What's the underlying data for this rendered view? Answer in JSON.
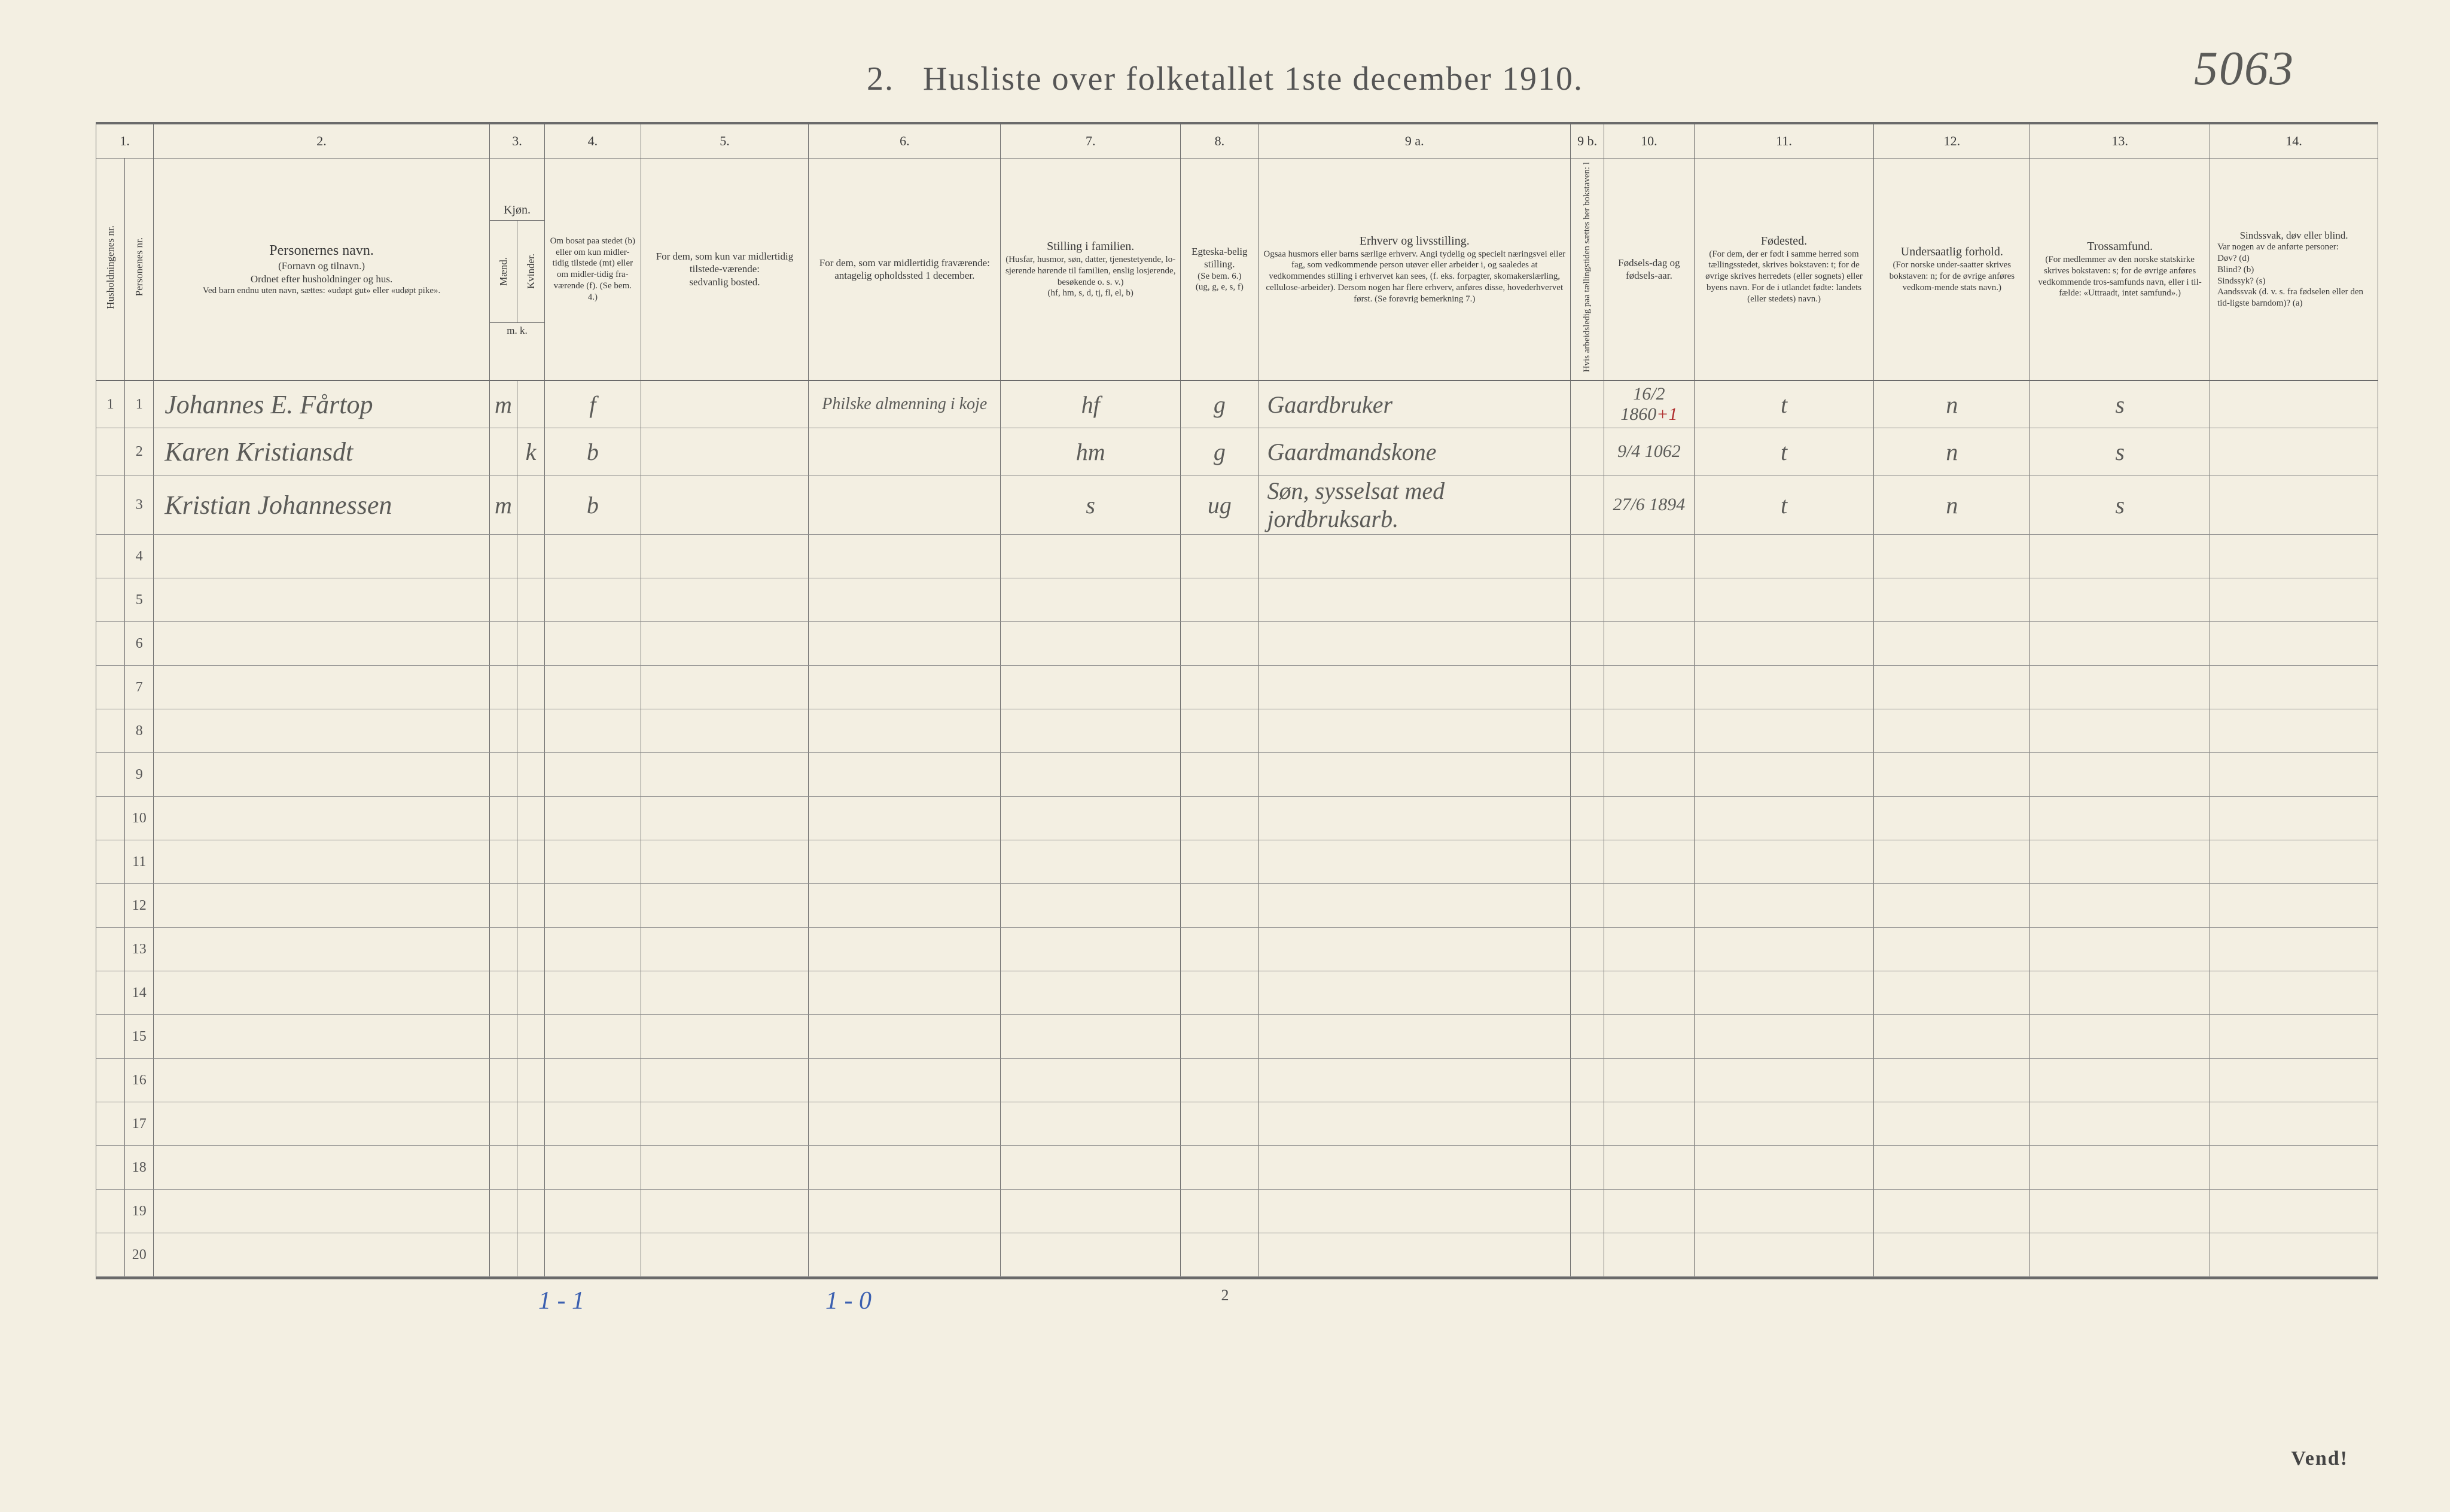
{
  "title_prefix": "2.",
  "title": "Husliste over folketallet 1ste december 1910.",
  "top_annotation": "5063",
  "page_number": "2",
  "vend": "Vend!",
  "foot_annot_1": "1 - 1",
  "foot_annot_2": "1 - 0",
  "columns": {
    "num": [
      "1.",
      "2.",
      "3.",
      "4.",
      "5.",
      "6.",
      "7.",
      "8.",
      "9 a.",
      "9 b.",
      "10.",
      "11.",
      "12.",
      "13.",
      "14."
    ],
    "h1a": "Husholdningenes nr.",
    "h1b": "Personenes nr.",
    "h2_title": "Personernes navn.",
    "h2_sub1": "(Fornavn og tilnavn.)",
    "h2_sub2": "Ordnet efter husholdninger og hus.",
    "h2_sub3": "Ved barn endnu uten navn, sættes: «udøpt gut» eller «udøpt pike».",
    "h3_title": "Kjøn.",
    "h3_m": "Mænd.",
    "h3_k": "Kvinder.",
    "h3_mk": "m.  k.",
    "h4": "Om bosat paa stedet (b) eller om kun midler-tidig tilstede (mt) eller om midler-tidig fra-værende (f). (Se bem. 4.)",
    "h5": "For dem, som kun var midlertidig tilstede-værende:\nsedvanlig bosted.",
    "h6": "For dem, som var midlertidig fraværende:\nantagelig opholdssted 1 december.",
    "h7_title": "Stilling i familien.",
    "h7_sub": "(Husfar, husmor, søn, datter, tjenestetyende, lo-sjerende hørende til familien, enslig losjerende, besøkende o. s. v.)\n(hf, hm, s, d, tj, fl, el, b)",
    "h8_title": "Egteska-belig stilling.",
    "h8_sub": "(Se bem. 6.)\n(ug, g, e, s, f)",
    "h9a_title": "Erhverv og livsstilling.",
    "h9a_sub": "Ogsaa husmors eller barns særlige erhverv. Angi tydelig og specielt næringsvei eller fag, som vedkommende person utøver eller arbeider i, og saaledes at vedkommendes stilling i erhvervet kan sees, (f. eks. forpagter, skomakerslærling, cellulose-arbeider). Dersom nogen har flere erhverv, anføres disse, hovederhvervet først. (Se forøvrig bemerkning 7.)",
    "h9b": "Hvis arbeidsledig paa tællingstiden sættes her bokstaven: l",
    "h10": "Fødsels-dag og fødsels-aar.",
    "h11_title": "Fødested.",
    "h11_sub": "(For dem, der er født i samme herred som tællingsstedet, skrives bokstaven: t; for de øvrige skrives herredets (eller sognets) eller byens navn. For de i utlandet fødte: landets (eller stedets) navn.)",
    "h12_title": "Undersaatlig forhold.",
    "h12_sub": "(For norske under-saatter skrives bokstaven: n; for de øvrige anføres vedkom-mende stats navn.)",
    "h13_title": "Trossamfund.",
    "h13_sub": "(For medlemmer av den norske statskirke skrives bokstaven: s; for de øvrige anføres vedkommende tros-samfunds navn, eller i til-fælde: «Uttraadt, intet samfund».)",
    "h14_title": "Sindssvak, døv eller blind.",
    "h14_sub": "Var nogen av de anførte personer:\nDøv? (d)\nBlind? (b)\nSindssyk? (s)\nAandssvak (d. v. s. fra fødselen eller den tid-ligste barndom)? (a)"
  },
  "rows": [
    {
      "hnr": "1",
      "pnr": "1",
      "name": "Johannes E. Fårtop",
      "m": "m",
      "k": "",
      "c4": "f",
      "c5": "",
      "c6": "Philske almenning i koje",
      "c7": "hf",
      "c8": "g",
      "c9a": "Gaardbruker",
      "c9b": "",
      "c10": "16/2 1860",
      "c10b": "+1",
      "c11": "t",
      "c12": "n",
      "c13": "s",
      "c14": ""
    },
    {
      "hnr": "",
      "pnr": "2",
      "name": "Karen Kristiansdt",
      "m": "",
      "k": "k",
      "c4": "b",
      "c5": "",
      "c6": "",
      "c7": "hm",
      "c8": "g",
      "c9a": "Gaardmandskone",
      "c9b": "",
      "c10": "9/4 1062",
      "c10b": "",
      "c11": "t",
      "c12": "n",
      "c13": "s",
      "c14": ""
    },
    {
      "hnr": "",
      "pnr": "3",
      "name": "Kristian Johannessen",
      "m": "m",
      "k": "",
      "c4": "b",
      "c5": "",
      "c6": "",
      "c7": "s",
      "c8": "ug",
      "c9a": "Søn, sysselsat med jordbruksarb.",
      "c9b": "",
      "c10": "27/6 1894",
      "c10b": "",
      "c11": "t",
      "c12": "n",
      "c13": "s",
      "c14": ""
    }
  ],
  "blank_rows": [
    4,
    5,
    6,
    7,
    8,
    9,
    10,
    11,
    12,
    13,
    14,
    15,
    16,
    17,
    18,
    19,
    20
  ]
}
